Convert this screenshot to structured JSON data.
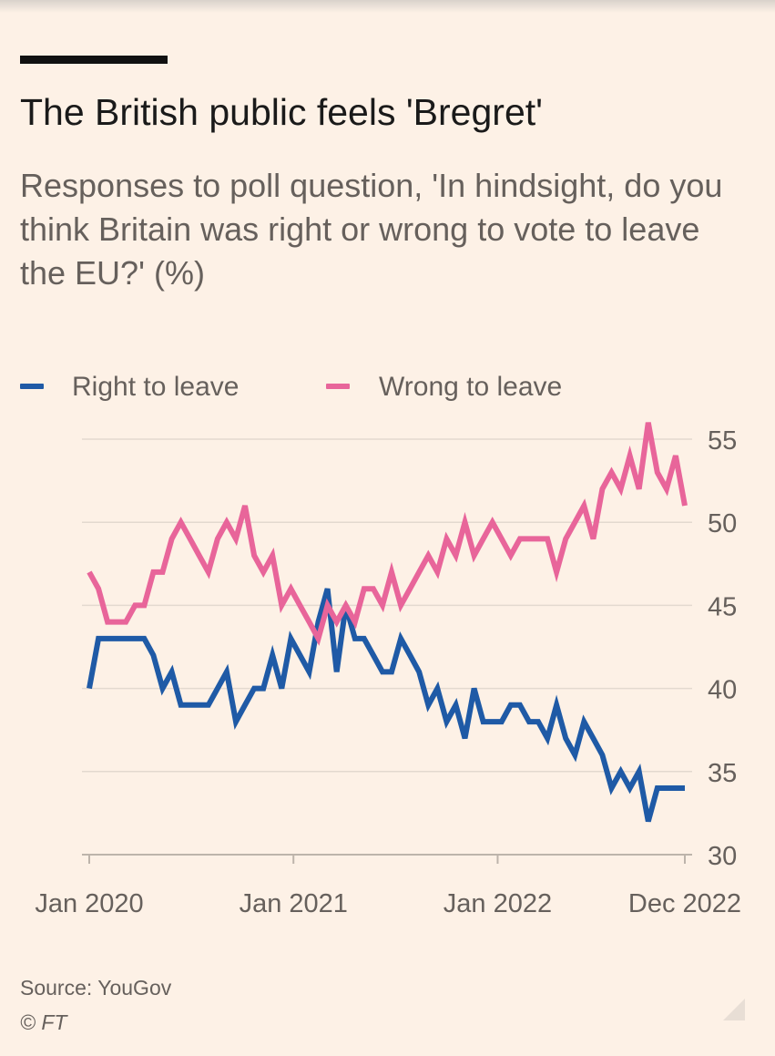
{
  "header": {
    "title": "The British public feels 'Bregret'",
    "subtitle": "Responses to poll question, 'In hindsight, do you think Britain was right or wrong to vote to leave the EU?' (%)"
  },
  "legend": {
    "right": "Right to leave",
    "wrong": "Wrong to leave"
  },
  "footer": {
    "source": "Source: YouGov",
    "credit": "© FT"
  },
  "colors": {
    "right": "#1f5aa6",
    "wrong": "#e8659a",
    "background": "#fdf1e6",
    "grid": "#e3d9cf",
    "axis": "#66605c"
  },
  "chart_data": {
    "type": "line",
    "x_start": "2020-01",
    "x_end": "2022-12",
    "x_ticks": [
      "Jan 2020",
      "Jan 2021",
      "Jan 2022",
      "Dec 2022"
    ],
    "y_ticks": [
      "55",
      "50",
      "45",
      "40",
      "35",
      "30"
    ],
    "ylim": [
      30,
      56
    ],
    "y_axis_side": "right",
    "grid": true,
    "legend_position": "top",
    "series": [
      {
        "name": "Right to leave",
        "color": "#1f5aa6",
        "values": [
          40,
          43,
          43,
          43,
          43,
          43,
          43,
          42,
          40,
          41,
          39,
          39,
          39,
          39,
          40,
          41,
          38,
          39,
          40,
          40,
          42,
          40,
          43,
          42,
          41,
          44,
          46,
          41,
          45,
          43,
          43,
          42,
          41,
          41,
          43,
          42,
          41,
          39,
          40,
          38,
          39,
          37,
          40,
          38,
          38,
          38,
          39,
          39,
          38,
          38,
          37,
          39,
          37,
          36,
          38,
          37,
          36,
          34,
          35,
          34,
          35,
          32,
          34,
          34,
          34,
          34
        ]
      },
      {
        "name": "Wrong to leave",
        "color": "#e8659a",
        "values": [
          47,
          46,
          44,
          44,
          44,
          45,
          45,
          47,
          47,
          49,
          50,
          49,
          48,
          47,
          49,
          50,
          49,
          51,
          48,
          47,
          48,
          45,
          46,
          45,
          44,
          43,
          45,
          44,
          45,
          44,
          46,
          46,
          45,
          47,
          45,
          46,
          47,
          48,
          47,
          49,
          48,
          50,
          48,
          49,
          50,
          49,
          48,
          49,
          49,
          49,
          49,
          47,
          49,
          50,
          51,
          49,
          52,
          53,
          52,
          54,
          52,
          56,
          53,
          52,
          54,
          51
        ]
      }
    ]
  }
}
